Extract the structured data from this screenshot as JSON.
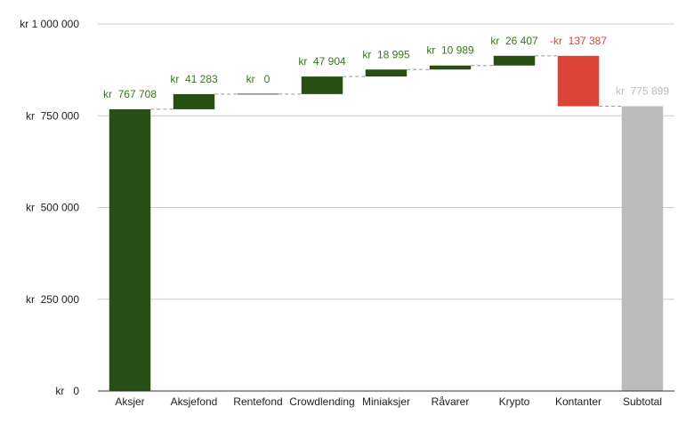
{
  "chart_data": {
    "type": "bar",
    "subtype": "waterfall",
    "title": "",
    "xlabel": "",
    "ylabel": "",
    "ylim": [
      0,
      1000000
    ],
    "yticks": [
      0,
      250000,
      500000,
      750000,
      1000000
    ],
    "ytick_labels": [
      "kr   0",
      "kr  250 000",
      "kr  500 000",
      "kr  750 000",
      "kr 1 000 000"
    ],
    "grid": true,
    "legend": "none",
    "categories": [
      "Aksjer",
      "Aksjefond",
      "Rentefond",
      "Crowdlending",
      "Miniaksjer",
      "Råvarer",
      "Krypto",
      "Kontanter",
      "Subtotal"
    ],
    "values": [
      767708,
      41283,
      0,
      47904,
      18995,
      10989,
      26407,
      -137387,
      775899
    ],
    "kinds": [
      "increase",
      "increase",
      "increase",
      "increase",
      "increase",
      "increase",
      "increase",
      "decrease",
      "total"
    ],
    "value_labels": [
      "kr  767 708",
      "kr  41 283",
      "kr   0",
      "kr  47 904",
      "kr  18 995",
      "kr  10 989",
      "kr  26 407",
      "-kr  137 387",
      "kr  775 899"
    ],
    "colors": {
      "increase": "#274e13",
      "decrease": "#db4437",
      "total": "#bcbcbc",
      "increase_label": "#38761d",
      "decrease_label": "#db4437",
      "total_label": "#bcbcbc",
      "axis_text": "#222222",
      "grid": "#cccccc",
      "connector": "#999999"
    }
  }
}
